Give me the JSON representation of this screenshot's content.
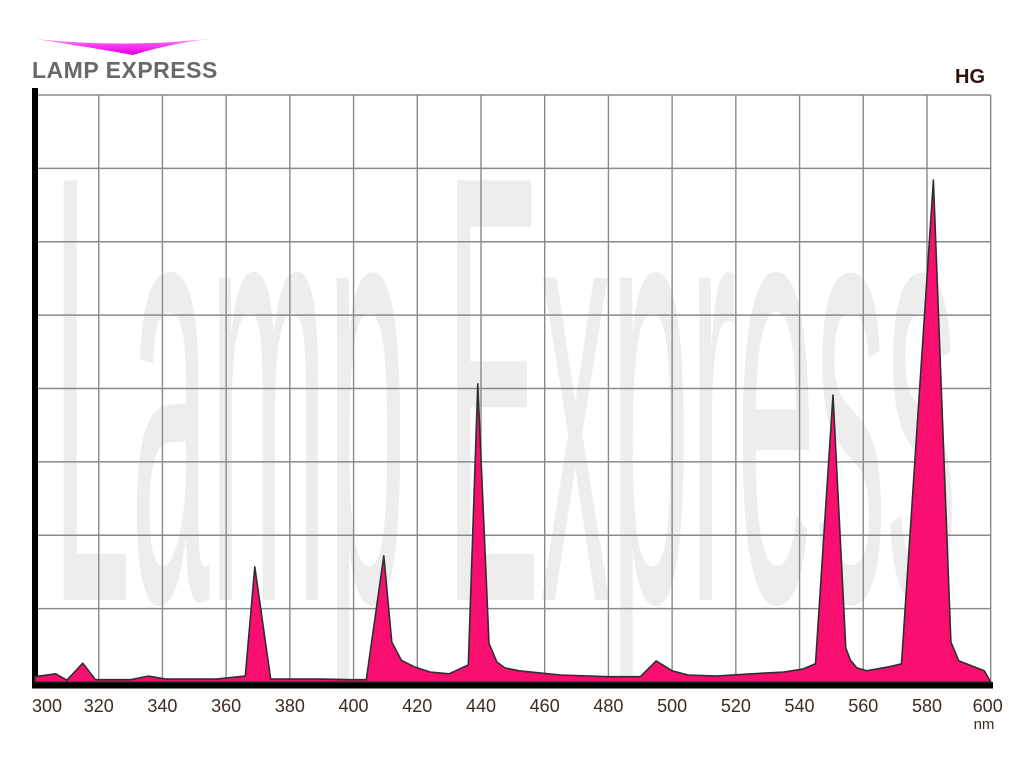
{
  "brand": {
    "name": "LAMP EXPRESS",
    "swoosh_gradient_top": "#ffc2ff",
    "swoosh_gradient_mid": "#fb3cf1",
    "swoosh_gradient_bottom": "#dc00dc"
  },
  "lamp_label": "HG",
  "watermark_text": "Lamp Express",
  "colors": {
    "spectrum_fill": "#F90F6F",
    "spectrum_stroke": "#2f2f2f",
    "grid_line": "#8a8a8a",
    "axis_black": "#000000",
    "tick_label": "#3e2b24",
    "title_gray": "#696969",
    "watermark_gray": "#ededed",
    "hg_color": "#2d140c"
  },
  "axes": {
    "x_min": 300,
    "x_max": 600,
    "x_ticks": [
      300,
      320,
      340,
      360,
      380,
      400,
      420,
      440,
      460,
      480,
      500,
      520,
      540,
      560,
      580,
      600
    ],
    "x_unit": "nm",
    "y_ticks": [],
    "x_grid_columns": 15,
    "y_grid_rows": 8
  },
  "chart_data": {
    "type": "area",
    "title": "HG",
    "xlabel": "nm",
    "ylabel": "",
    "xlim": [
      300,
      600
    ],
    "ylim": [
      0,
      100
    ],
    "grid": true,
    "legend": "none",
    "series": [
      {
        "name": "HG",
        "points": [
          [
            300,
            0.9
          ],
          [
            306.5,
            1.4
          ],
          [
            310,
            0.3
          ],
          [
            315,
            3.2
          ],
          [
            319,
            0.4
          ],
          [
            330,
            0.4
          ],
          [
            335.5,
            1.0
          ],
          [
            341,
            0.5
          ],
          [
            357,
            0.5
          ],
          [
            364,
            0.9
          ],
          [
            366,
            1.0
          ],
          [
            369,
            19.6
          ],
          [
            374,
            0.5
          ],
          [
            390,
            0.5
          ],
          [
            399,
            0.4
          ],
          [
            404,
            0.4
          ],
          [
            409.5,
            21.5
          ],
          [
            412,
            6.8
          ],
          [
            415,
            3.7
          ],
          [
            419,
            2.6
          ],
          [
            424,
            1.7
          ],
          [
            430,
            1.4
          ],
          [
            434,
            2.4
          ],
          [
            436,
            2.9
          ],
          [
            439,
            50.8
          ],
          [
            442.5,
            6.6
          ],
          [
            445,
            3.4
          ],
          [
            447.5,
            2.4
          ],
          [
            452,
            1.9
          ],
          [
            465,
            1.2
          ],
          [
            480,
            0.9
          ],
          [
            490,
            0.9
          ],
          [
            495,
            3.6
          ],
          [
            500,
            1.9
          ],
          [
            505,
            1.2
          ],
          [
            514,
            1.0
          ],
          [
            525,
            1.4
          ],
          [
            535,
            1.7
          ],
          [
            541,
            2.2
          ],
          [
            545,
            3.1
          ],
          [
            550.5,
            48.9
          ],
          [
            554.5,
            5.8
          ],
          [
            556,
            3.7
          ],
          [
            558,
            2.4
          ],
          [
            561,
            1.9
          ],
          [
            569,
            2.7
          ],
          [
            572,
            3.1
          ],
          [
            582,
            85.5
          ],
          [
            587.5,
            6.8
          ],
          [
            590,
            3.6
          ],
          [
            598,
            1.9
          ],
          [
            600,
            0
          ]
        ]
      }
    ]
  }
}
